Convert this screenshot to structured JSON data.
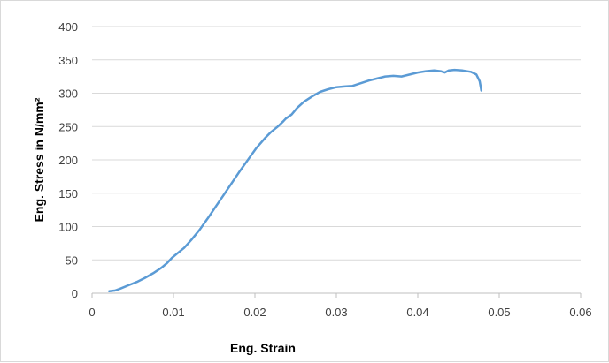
{
  "chart_data": {
    "type": "line",
    "title": "",
    "xlabel": "Eng. Strain",
    "ylabel": "Eng. Stress in N/mm²",
    "xlim": [
      0,
      0.06
    ],
    "ylim": [
      0,
      400
    ],
    "x_ticks": [
      "0",
      "0.01",
      "0.02",
      "0.03",
      "0.04",
      "0.05",
      "0.06"
    ],
    "y_ticks": [
      "0",
      "50",
      "100",
      "150",
      "200",
      "250",
      "300",
      "350",
      "400"
    ],
    "grid": "horizontal major gridlines",
    "legend": "none",
    "series": [
      {
        "color": "#5b9bd5",
        "x": [
          0.0021,
          0.0028,
          0.0035,
          0.0045,
          0.0055,
          0.0065,
          0.0075,
          0.0085,
          0.0092,
          0.0098,
          0.0105,
          0.0113,
          0.0122,
          0.0132,
          0.0142,
          0.0152,
          0.0162,
          0.0172,
          0.0182,
          0.0192,
          0.0202,
          0.0212,
          0.022,
          0.0228,
          0.0235,
          0.0238,
          0.0245,
          0.0252,
          0.026,
          0.027,
          0.028,
          0.029,
          0.03,
          0.031,
          0.032,
          0.033,
          0.034,
          0.035,
          0.036,
          0.037,
          0.038,
          0.039,
          0.04,
          0.041,
          0.042,
          0.0428,
          0.0433,
          0.0438,
          0.0445,
          0.0455,
          0.0465,
          0.0472,
          0.0476,
          0.0478
        ],
        "y": [
          3,
          4,
          7,
          12,
          17,
          23,
          30,
          38,
          45,
          53,
          60,
          68,
          80,
          95,
          112,
          130,
          148,
          166,
          184,
          201,
          218,
          232,
          242,
          250,
          258,
          262,
          268,
          278,
          287,
          295,
          302,
          306,
          309,
          310,
          311,
          315,
          319,
          322,
          325,
          326,
          325,
          328,
          331,
          333,
          334,
          333,
          331,
          334,
          335,
          334,
          332,
          328,
          318,
          304
        ]
      }
    ]
  }
}
